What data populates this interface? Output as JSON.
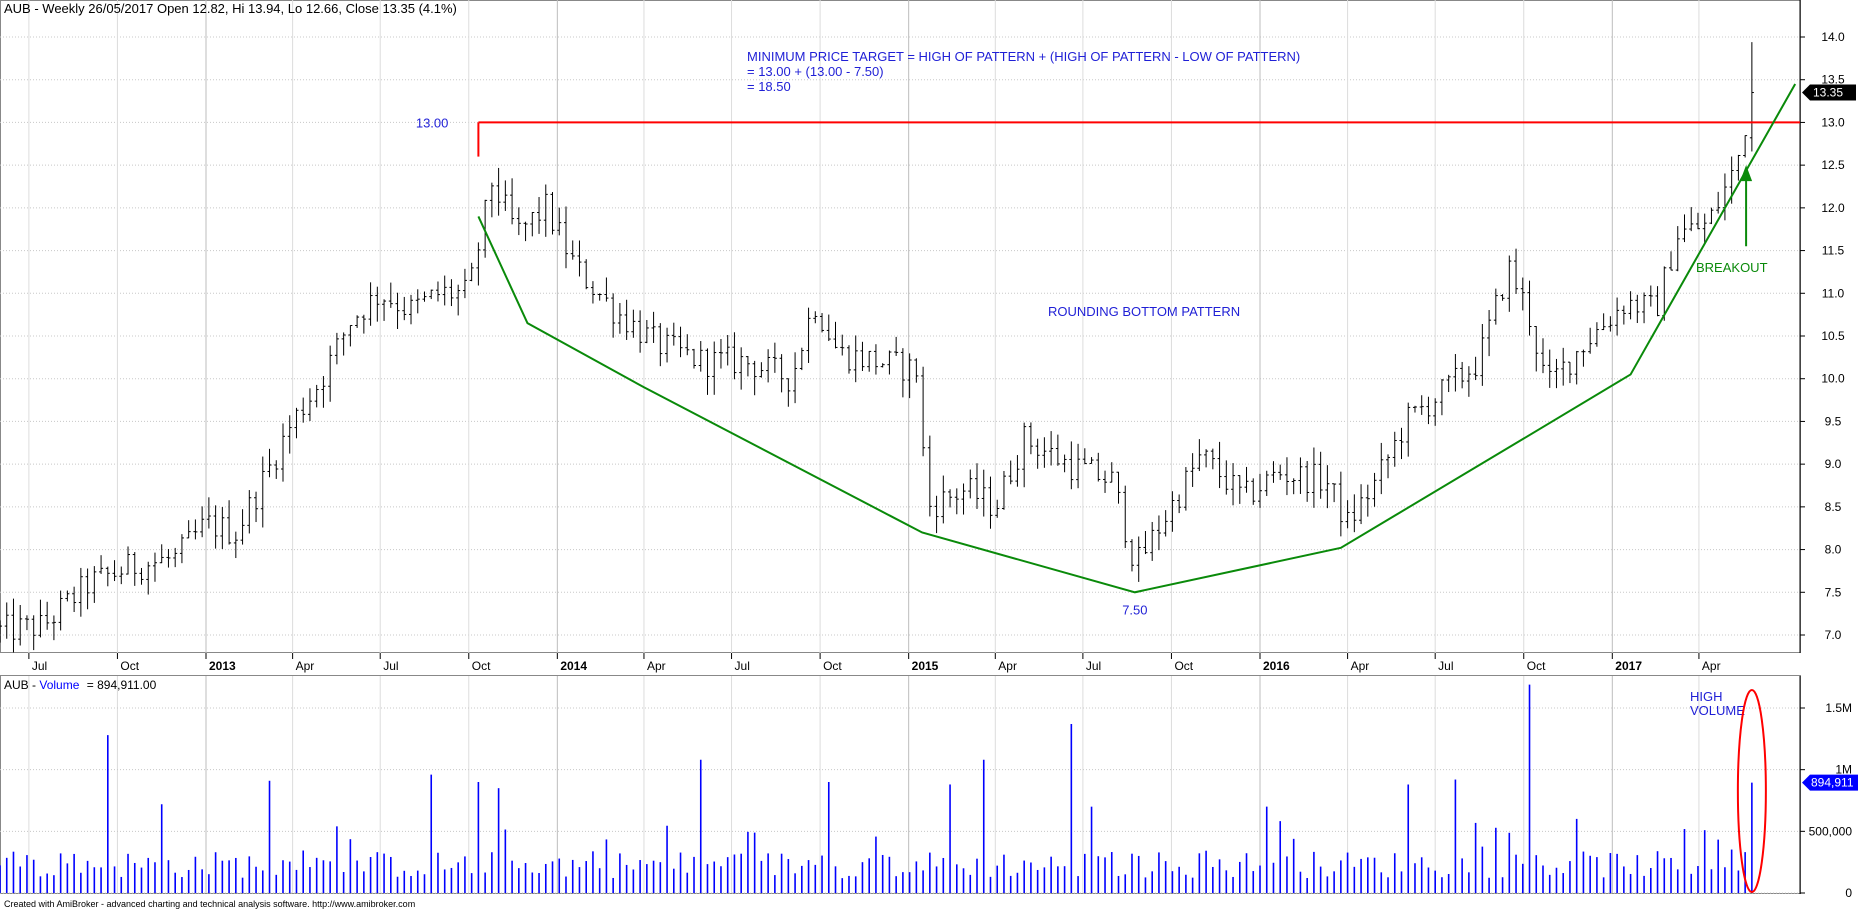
{
  "header": {
    "symbol": "AUB",
    "summary": "AUB - Weekly 26/05/2017 Open 12.82, Hi 13.94, Lo 12.66, Close 13.35 (4.1%)"
  },
  "volume_header": {
    "symbol": "AUB",
    "series": "Volume",
    "rest": "= 894,911.00"
  },
  "footer": "Created with AmiBroker - advanced charting and technical analysis software. http://www.amibroker.com",
  "colors": {
    "price_bars": "#000000",
    "resistance": "#ff0000",
    "pattern": "#0a8a0a",
    "volume": "#0000ff",
    "annotation_blue": "#1f1fd6",
    "ellipse": "#ff0000",
    "grid": "#c8c8c8",
    "badge_bg": "#000000",
    "vol_badge_bg": "#0000ff"
  },
  "chart_data": [
    {
      "type": "ohlc",
      "title": "AUB - Weekly",
      "x_axis_labels": [
        "Jul",
        "Oct",
        "2013",
        "Apr",
        "Jul",
        "Oct",
        "2014",
        "Apr",
        "Jul",
        "Oct",
        "2015",
        "Apr",
        "Jul",
        "Oct",
        "2016",
        "Apr",
        "Jul",
        "Oct",
        "2017",
        "Apr"
      ],
      "x_axis_label_dates": [
        "2012-07-01",
        "2012-10-01",
        "2013-01-01",
        "2013-04-01",
        "2013-07-01",
        "2013-10-01",
        "2014-01-01",
        "2014-04-01",
        "2014-07-01",
        "2014-10-01",
        "2015-01-01",
        "2015-04-01",
        "2015-07-01",
        "2015-10-01",
        "2016-01-01",
        "2016-04-01",
        "2016-07-01",
        "2016-10-01",
        "2017-01-01",
        "2017-04-01"
      ],
      "year_labels": [
        "2013",
        "2014",
        "2015",
        "2016",
        "2017"
      ],
      "x_range": [
        "2012-06-01",
        "2017-07-15"
      ],
      "y_ticks": [
        7.0,
        7.5,
        8.0,
        8.5,
        9.0,
        9.5,
        10.0,
        10.5,
        11.0,
        11.5,
        12.0,
        12.5,
        13.0,
        13.5,
        14.0
      ],
      "ylim": [
        6.9,
        14.2
      ],
      "grid": true,
      "last_close": 13.35,
      "last_close_label": "13.35",
      "last_bar": {
        "date": "2017-05-26",
        "open": 12.82,
        "high": 13.94,
        "low": 12.66,
        "close": 13.35
      },
      "price_anchors": [
        [
          "2012-06-01",
          7.05
        ],
        [
          "2012-07-15",
          7.1
        ],
        [
          "2012-09-01",
          7.6
        ],
        [
          "2012-10-15",
          7.8
        ],
        [
          "2012-12-01",
          7.9
        ],
        [
          "2013-01-01",
          8.3
        ],
        [
          "2013-02-01",
          8.2
        ],
        [
          "2013-03-01",
          8.8
        ],
        [
          "2013-04-01",
          9.5
        ],
        [
          "2013-05-01",
          10.0
        ],
        [
          "2013-06-01",
          10.7
        ],
        [
          "2013-07-01",
          11.0
        ],
        [
          "2013-08-01",
          10.8
        ],
        [
          "2013-09-01",
          11.0
        ],
        [
          "2013-10-01",
          11.0
        ],
        [
          "2013-10-25",
          12.3
        ],
        [
          "2013-11-20",
          11.7
        ],
        [
          "2013-12-20",
          12.0
        ],
        [
          "2014-01-20",
          11.3
        ],
        [
          "2014-03-01",
          10.8
        ],
        [
          "2014-04-15",
          10.4
        ],
        [
          "2014-06-01",
          10.2
        ],
        [
          "2014-07-15",
          10.2
        ],
        [
          "2014-09-01",
          10.0
        ],
        [
          "2014-09-25",
          10.9
        ],
        [
          "2014-10-20",
          10.3
        ],
        [
          "2014-12-01",
          10.2
        ],
        [
          "2015-01-10",
          10.1
        ],
        [
          "2015-01-20",
          8.5
        ],
        [
          "2015-03-01",
          8.7
        ],
        [
          "2015-04-01",
          8.5
        ],
        [
          "2015-05-01",
          9.3
        ],
        [
          "2015-06-15",
          9.0
        ],
        [
          "2015-08-01",
          8.8
        ],
        [
          "2015-08-25",
          7.8
        ],
        [
          "2015-09-20",
          8.3
        ],
        [
          "2015-11-01",
          9.1
        ],
        [
          "2015-12-15",
          8.6
        ],
        [
          "2016-01-20",
          8.9
        ],
        [
          "2016-03-10",
          8.8
        ],
        [
          "2016-04-01",
          8.3
        ],
        [
          "2016-05-01",
          8.8
        ],
        [
          "2016-06-01",
          9.5
        ],
        [
          "2016-07-15",
          9.9
        ],
        [
          "2016-08-15",
          10.2
        ],
        [
          "2016-09-15",
          11.3
        ],
        [
          "2016-10-05",
          10.8
        ],
        [
          "2016-10-25",
          9.9
        ],
        [
          "2016-12-01",
          10.4
        ],
        [
          "2017-01-15",
          10.9
        ],
        [
          "2017-02-15",
          10.8
        ],
        [
          "2017-03-10",
          11.7
        ],
        [
          "2017-04-10",
          11.8
        ],
        [
          "2017-05-10",
          12.5
        ],
        [
          "2017-05-26",
          13.35
        ]
      ],
      "annotations": {
        "resistance": {
          "value": 13.0,
          "start": "2013-10-11",
          "label": "13.00"
        },
        "low_point": {
          "date": "2015-08-24",
          "value": 7.5,
          "label": "7.50"
        },
        "target_text": [
          "MINIMUM PRICE TARGET = HIGH OF PATTERN + (HIGH OF PATTERN - LOW OF PATTERN)",
          "= 13.00 + (13.00 - 7.50)",
          "= 18.50"
        ],
        "pattern_label": "ROUNDING BOTTOM PATTERN",
        "breakout_label": "BREAKOUT",
        "pattern_line": [
          [
            "2013-10-11",
            11.9
          ],
          [
            "2013-12-01",
            10.65
          ],
          [
            "2014-04-01",
            9.9
          ],
          [
            "2015-01-15",
            8.2
          ],
          [
            "2015-08-24",
            7.5
          ],
          [
            "2016-03-25",
            8.02
          ],
          [
            "2016-10-01",
            9.3
          ],
          [
            "2017-01-20",
            10.05
          ],
          [
            "2017-07-10",
            13.45
          ]
        ],
        "breakout_arrow": {
          "date": "2017-05-20",
          "from": 11.55,
          "to": 12.5
        }
      }
    },
    {
      "type": "bar",
      "title": "Volume",
      "y_ticks": [
        0,
        500000,
        1000000,
        1500000
      ],
      "y_tick_labels": [
        "0",
        "500,000",
        "1M",
        "1.5M"
      ],
      "ylim": [
        0,
        1700000
      ],
      "last_value": 894911,
      "last_value_label": "894,911",
      "volume_baseline": 120000,
      "spikes": [
        [
          "2012-09-20",
          1280000
        ],
        [
          "2012-11-15",
          720000
        ],
        [
          "2013-03-10",
          910000
        ],
        [
          "2013-08-20",
          960000
        ],
        [
          "2013-10-10",
          900000
        ],
        [
          "2013-11-01",
          850000
        ],
        [
          "2014-06-01",
          1080000
        ],
        [
          "2014-10-10",
          900000
        ],
        [
          "2015-02-10",
          880000
        ],
        [
          "2015-03-20",
          1080000
        ],
        [
          "2015-06-20",
          1370000
        ],
        [
          "2015-07-10",
          700000
        ],
        [
          "2016-01-10",
          700000
        ],
        [
          "2016-06-01",
          880000
        ],
        [
          "2016-07-25",
          920000
        ],
        [
          "2016-10-10",
          1690000
        ],
        [
          "2017-05-26",
          894911
        ]
      ],
      "annotations": {
        "high_volume_label": [
          "HIGH",
          "VOLUME"
        ]
      }
    }
  ]
}
